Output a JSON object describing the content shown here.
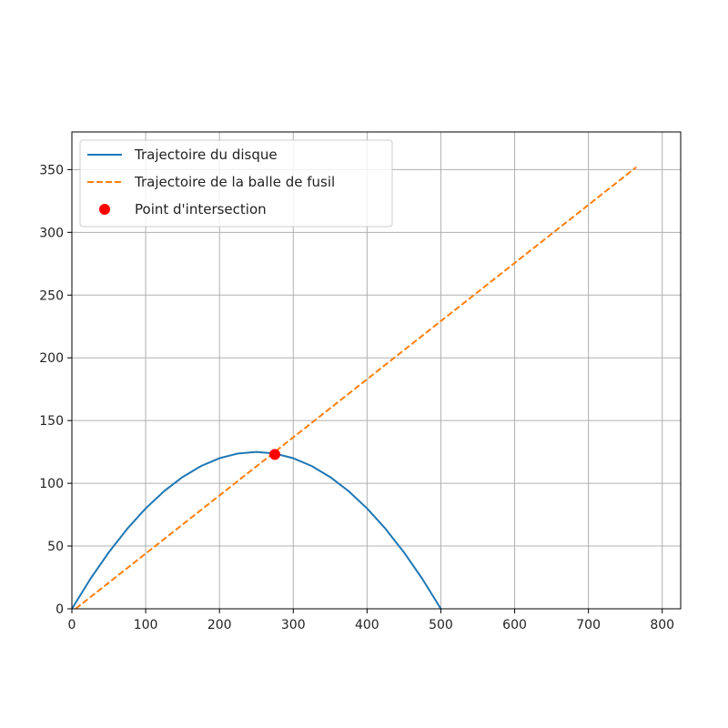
{
  "chart_data": {
    "type": "line",
    "title": "",
    "xlabel": "",
    "ylabel": "",
    "xlim": [
      0,
      825
    ],
    "ylim": [
      0,
      380
    ],
    "xticks": [
      0,
      100,
      200,
      300,
      400,
      500,
      600,
      700,
      800
    ],
    "yticks": [
      0,
      50,
      100,
      150,
      200,
      250,
      300,
      350
    ],
    "grid": true,
    "legend_position": "top-left",
    "series": [
      {
        "name": "Trajectoire du disque",
        "kind": "line",
        "style": "solid",
        "color": "#1f77b4",
        "x": [
          0,
          25,
          50,
          75,
          100,
          125,
          150,
          175,
          200,
          225,
          250,
          275,
          300,
          325,
          350,
          375,
          400,
          425,
          450,
          475,
          500
        ],
        "y": [
          0,
          23.75,
          45,
          63.75,
          80,
          93.75,
          105,
          113.75,
          120,
          123.75,
          125,
          123.75,
          120,
          113.75,
          105,
          93.75,
          80,
          63.75,
          45,
          23.75,
          0
        ]
      },
      {
        "name": "Trajectoire de la balle de fusil",
        "kind": "line",
        "style": "dashed",
        "color": "#ff7f0e",
        "x": [
          5,
          765
        ],
        "y": [
          0,
          352
        ]
      },
      {
        "name": "Point d'intersection",
        "kind": "scatter",
        "color": "#ff0000",
        "x": [
          275
        ],
        "y": [
          123
        ]
      }
    ]
  }
}
